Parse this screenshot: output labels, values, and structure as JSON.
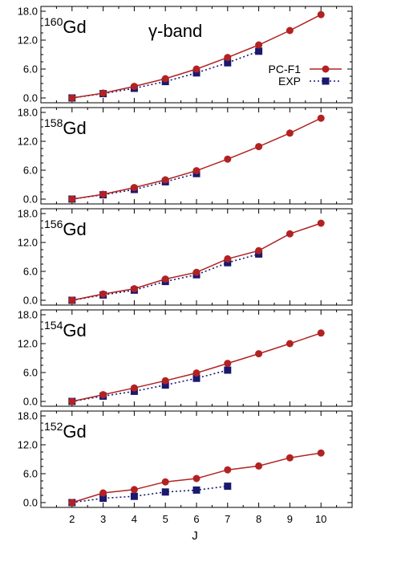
{
  "chart_data": {
    "type": "line",
    "xlabel": "J",
    "x_ticks": [
      2,
      3,
      4,
      5,
      6,
      7,
      8,
      9,
      10
    ],
    "xlim": [
      1,
      11
    ],
    "ylim": [
      -1,
      19
    ],
    "y_ticks": [
      "0.0",
      "6.0",
      "12.0",
      "18.0"
    ],
    "legend": {
      "placement": "top-right",
      "entries": [
        "PC-F1",
        "EXP"
      ]
    },
    "colors": {
      "pcf1": "#b22222",
      "exp": "#191970"
    },
    "annotation": "γ-band",
    "panels": [
      {
        "mass": "160",
        "element": "Gd",
        "series": [
          {
            "name": "PC-F1",
            "x": [
              2,
              3,
              4,
              5,
              6,
              7,
              8,
              9,
              10
            ],
            "y": [
              0.0,
              1.0,
              2.4,
              4.0,
              6.0,
              8.4,
              11.0,
              14.0,
              17.3
            ]
          },
          {
            "name": "EXP",
            "x": [
              2,
              3,
              4,
              5,
              6,
              7,
              8
            ],
            "y": [
              0.0,
              0.9,
              2.0,
              3.4,
              5.2,
              7.3,
              9.7
            ]
          }
        ]
      },
      {
        "mass": "158",
        "element": "Gd",
        "series": [
          {
            "name": "PC-F1",
            "x": [
              2,
              3,
              4,
              5,
              6,
              7,
              8,
              9,
              10
            ],
            "y": [
              0.0,
              1.0,
              2.4,
              4.0,
              5.9,
              8.3,
              10.9,
              13.7,
              16.8
            ]
          },
          {
            "name": "EXP",
            "x": [
              2,
              3,
              4,
              5,
              6
            ],
            "y": [
              0.0,
              0.9,
              2.0,
              3.6,
              5.3
            ]
          }
        ]
      },
      {
        "mass": "156",
        "element": "Gd",
        "series": [
          {
            "name": "PC-F1",
            "x": [
              2,
              3,
              4,
              5,
              6,
              7,
              8,
              9,
              10
            ],
            "y": [
              0.0,
              1.3,
              2.4,
              4.4,
              5.8,
              8.6,
              10.3,
              13.8,
              16.0
            ]
          },
          {
            "name": "EXP",
            "x": [
              2,
              3,
              4,
              5,
              6,
              7,
              8
            ],
            "y": [
              0.0,
              1.1,
              2.1,
              3.9,
              5.3,
              7.8,
              9.6
            ]
          }
        ]
      },
      {
        "mass": "154",
        "element": "Gd",
        "series": [
          {
            "name": "PC-F1",
            "x": [
              2,
              3,
              4,
              5,
              6,
              7,
              8,
              9,
              10
            ],
            "y": [
              0.0,
              1.4,
              2.8,
              4.3,
              5.9,
              7.9,
              9.9,
              12.0,
              14.2
            ]
          },
          {
            "name": "EXP",
            "x": [
              2,
              3,
              4,
              5,
              6,
              7
            ],
            "y": [
              0.0,
              1.1,
              2.1,
              3.4,
              4.8,
              6.5
            ]
          }
        ]
      },
      {
        "mass": "152",
        "element": "Gd",
        "series": [
          {
            "name": "PC-F1",
            "x": [
              2,
              3,
              4,
              5,
              6,
              7,
              8,
              9,
              10
            ],
            "y": [
              0.0,
              2.0,
              2.7,
              4.3,
              5.0,
              6.8,
              7.6,
              9.3,
              10.3
            ]
          },
          {
            "name": "EXP",
            "x": [
              2,
              3,
              4,
              5,
              6,
              7
            ],
            "y": [
              0.0,
              0.9,
              1.3,
              2.2,
              2.6,
              3.4
            ]
          }
        ]
      }
    ]
  }
}
